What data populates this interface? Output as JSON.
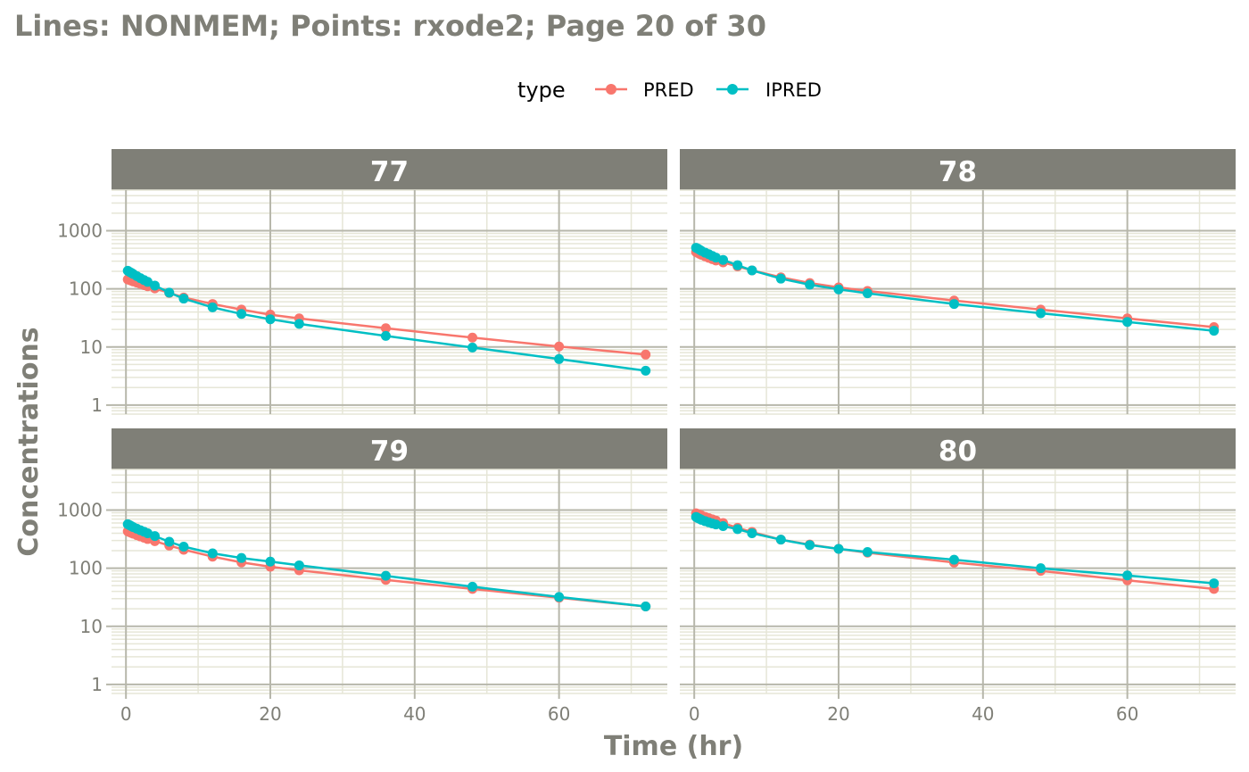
{
  "title": "Lines: NONMEM; Points: rxode2; Page 20 of 30",
  "colors": {
    "PRED": "#f8766d",
    "IPRED": "#00bfc4",
    "strip": "#7f7f77",
    "strip_text": "#ffffff",
    "axis_text": "#7f7f77",
    "grid_major": "#b7b7ab",
    "grid_minor": "#e6e6d7",
    "panel_grid": "#ececde"
  },
  "chart_data": {
    "type": "line",
    "facets_layout": "2x2",
    "xlabel": "Time (hr)",
    "ylabel": "Concentrations",
    "y_scale": "log10",
    "x_ticks": [
      0,
      20,
      40,
      60
    ],
    "y_ticks": [
      1,
      10,
      100,
      1000
    ],
    "y_tick_labels": [
      "1",
      "10",
      "100",
      "1000"
    ],
    "xlim": [
      -2,
      75
    ],
    "ylim": [
      0.7,
      5000
    ],
    "legend": {
      "title": "type",
      "position": "top",
      "entries": [
        "PRED",
        "IPRED"
      ]
    },
    "times": [
      0.25,
      0.5,
      0.75,
      1,
      1.5,
      2,
      2.5,
      3,
      4,
      6,
      8,
      12,
      16,
      20,
      24,
      36,
      48,
      60,
      72
    ],
    "panels": [
      {
        "id": "77",
        "series": [
          {
            "name": "PRED",
            "values": [
              145,
              142,
              138,
              134,
              128,
              122,
              116,
              111,
              102,
              85,
              71,
              55,
              44,
              36,
              31,
              21,
              14.5,
              10.2,
              7.4
            ]
          },
          {
            "name": "IPRED",
            "values": [
              205,
              196,
              188,
              180,
              166,
              153,
              142,
              132,
              114,
              86,
              68,
              48,
              37,
              30,
              25,
              15.5,
              9.8,
              6.2,
              3.9
            ]
          }
        ]
      },
      {
        "id": "78",
        "series": [
          {
            "name": "PRED",
            "values": [
              430,
              415,
              400,
              386,
              362,
              342,
              324,
              308,
              285,
              243,
              208,
              158,
              126,
              106,
              92,
              63,
              44,
              31,
              22
            ]
          },
          {
            "name": "IPRED",
            "values": [
              510,
              492,
              470,
              450,
              420,
              395,
              368,
              345,
              315,
              255,
              208,
              150,
              118,
              98,
              84,
              55,
              38,
              27,
              19
            ]
          }
        ]
      },
      {
        "id": "79",
        "series": [
          {
            "name": "PRED",
            "values": [
              430,
              418,
              405,
              392,
              370,
              352,
              334,
              318,
              292,
              245,
              208,
              158,
              126,
              106,
              92,
              63,
              44,
              31,
              22
            ]
          },
          {
            "name": "IPRED",
            "values": [
              570,
              550,
              530,
              510,
              478,
              450,
              424,
              400,
              358,
              285,
              235,
              180,
              150,
              130,
              112,
              74,
              48,
              32,
              22
            ]
          }
        ]
      },
      {
        "id": "80",
        "series": [
          {
            "name": "PRED",
            "values": [
              880,
              855,
              830,
              805,
              765,
              728,
              694,
              662,
              600,
              495,
              420,
              310,
              255,
              215,
              185,
              125,
              90,
              62,
              44
            ]
          },
          {
            "name": "IPRED",
            "values": [
              760,
              730,
              705,
              680,
              645,
              615,
              590,
              566,
              530,
              470,
              400,
              310,
              250,
              215,
              190,
              140,
              100,
              75,
              55
            ]
          }
        ]
      }
    ]
  }
}
